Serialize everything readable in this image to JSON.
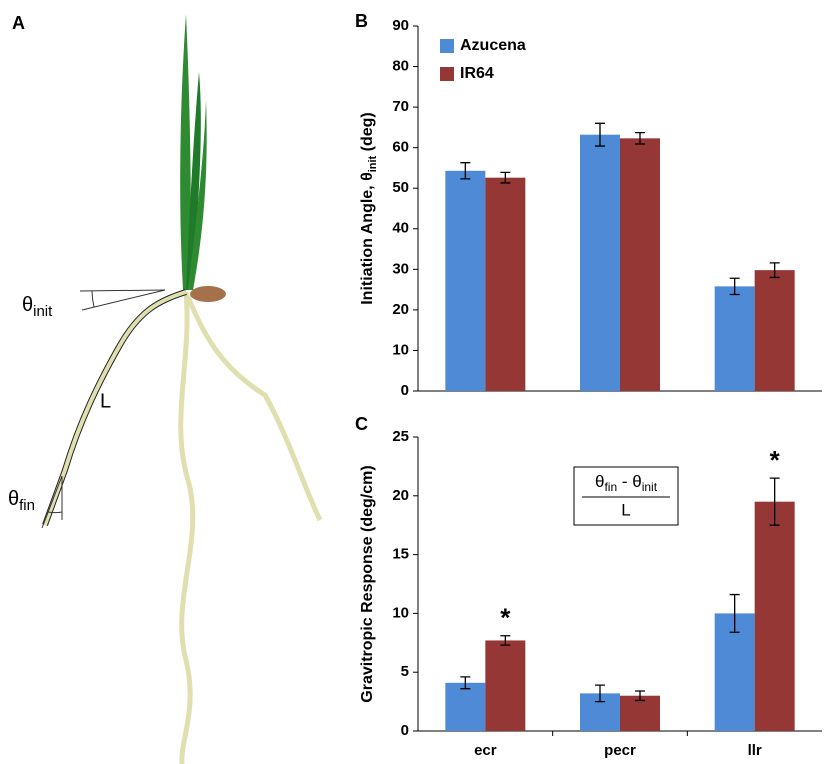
{
  "diagram": {
    "panel": "A",
    "theta_init": {
      "text": "θ",
      "sub": "init"
    },
    "length": "L",
    "theta_fin": {
      "text": "θ",
      "sub": "fin"
    }
  },
  "chart_data": [
    {
      "type": "bar",
      "panel": "B",
      "ylabel": {
        "text": "Initiation Angle, θ",
        "sub": "init",
        "after": " (deg)"
      },
      "categories": [
        null,
        null,
        null
      ],
      "series": [
        {
          "name": "Azucena",
          "color": "#4f8ad6",
          "values": [
            54.3,
            63.2,
            25.8
          ],
          "errors": [
            2.0,
            2.8,
            2.0
          ]
        },
        {
          "name": "IR64",
          "color": "#953735",
          "values": [
            52.6,
            62.3,
            29.8
          ],
          "errors": [
            1.3,
            1.4,
            1.8
          ]
        }
      ],
      "ylim": [
        0,
        90
      ],
      "yticks": [
        0,
        10,
        20,
        30,
        40,
        50,
        60,
        70,
        80,
        90
      ],
      "legend": "upper left"
    },
    {
      "type": "bar",
      "panel": "C",
      "ylabel": "Gravitropic Response (deg/cm)",
      "categories": [
        "ecr",
        "pecr",
        "llr"
      ],
      "series": [
        {
          "name": "Azucena",
          "color": "#4f8ad6",
          "values": [
            4.1,
            3.2,
            10.0
          ],
          "errors": [
            0.5,
            0.7,
            1.6
          ],
          "markers": [
            null,
            null,
            null
          ]
        },
        {
          "name": "IR64",
          "color": "#953735",
          "values": [
            7.7,
            3.0,
            19.5
          ],
          "errors": [
            0.4,
            0.4,
            2.0
          ],
          "markers": [
            "*",
            null,
            "*"
          ]
        }
      ],
      "formula": {
        "numerator": [
          {
            "text": "θ",
            "sub": "fin"
          },
          {
            "text": " - θ",
            "sub": "init"
          }
        ],
        "denominator": "L"
      },
      "ylim": [
        0,
        25
      ],
      "yticks": [
        0,
        5,
        10,
        15,
        20,
        25
      ]
    }
  ]
}
